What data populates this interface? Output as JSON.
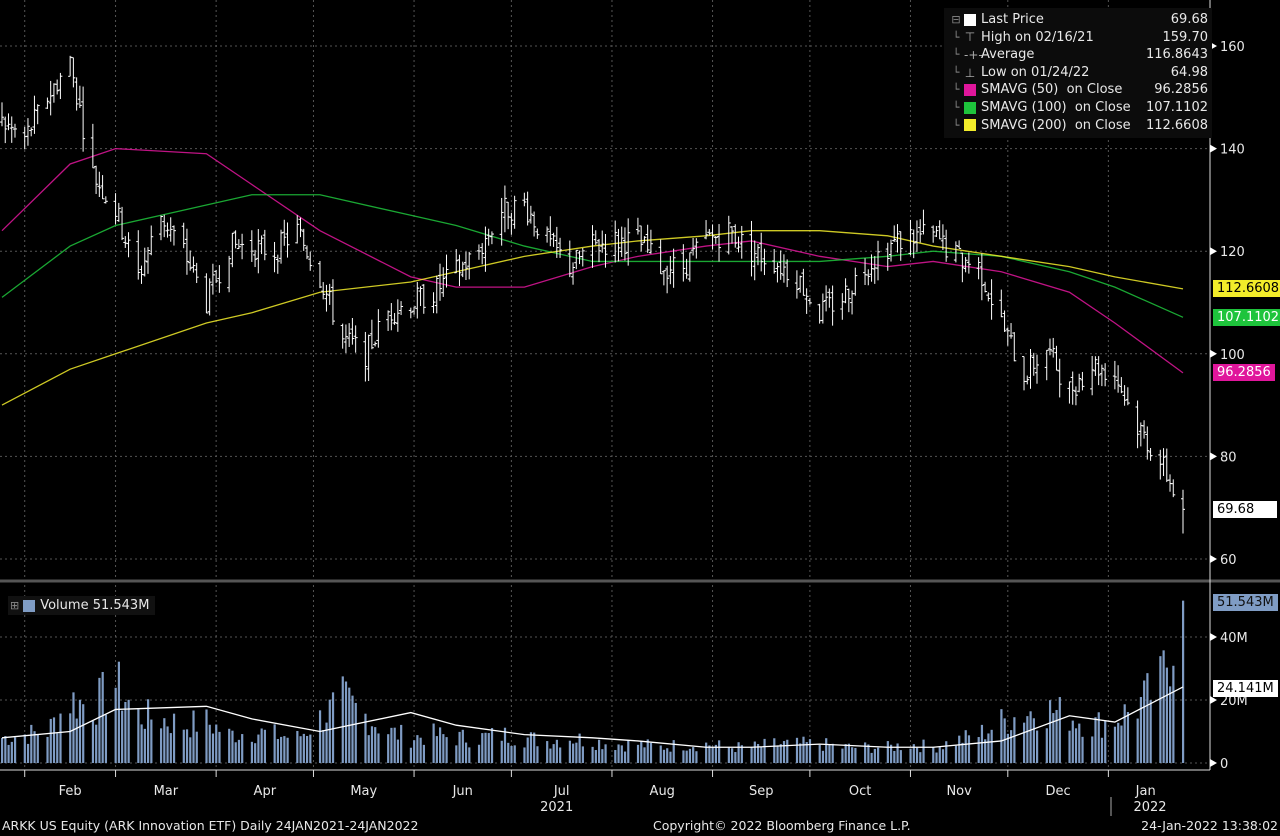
{
  "legend": {
    "rows": [
      {
        "icon": "white-square",
        "label": "Last Price",
        "value": "69.68",
        "color": "#ffffff"
      },
      {
        "icon": "high-marker",
        "label": "High on 02/16/21",
        "value": "159.70"
      },
      {
        "icon": "average-marker",
        "label": "Average",
        "value": "116.8643"
      },
      {
        "icon": "low-marker",
        "label": "Low on 01/24/22",
        "value": "64.98"
      },
      {
        "icon": "magenta-square",
        "label": "SMAVG (50)  on Close",
        "value": "96.2856",
        "color": "#e0169b"
      },
      {
        "icon": "green-square",
        "label": "SMAVG (100)  on Close",
        "value": "107.1102",
        "color": "#1ec43c"
      },
      {
        "icon": "yellow-square",
        "label": "SMAVG (200)  on Close",
        "value": "112.6608",
        "color": "#f2ec2a"
      }
    ]
  },
  "price_tags": {
    "sma200": "112.6608",
    "sma100": "107.1102",
    "sma50": "96.2856",
    "last": "69.68"
  },
  "volume_legend": {
    "label": "Volume",
    "value": "51.543M",
    "color": "#7f9cc4"
  },
  "volume_tags": {
    "last": "51.543M",
    "ma": "24.141M"
  },
  "footer": {
    "security": "ARKK US Equity (ARK Innovation ETF)  Daily 24JAN2021-24JAN2022",
    "copyright": "Copyright© 2022 Bloomberg Finance L.P.",
    "timestamp": "24-Jan-2022 13:38:02"
  },
  "chart_data": [
    {
      "type": "line",
      "panel": "price",
      "x_start": "2021-01-25",
      "x_end": "2022-01-24",
      "ylim": [
        57,
        170
      ],
      "yticks": [
        60,
        80,
        100,
        120,
        140,
        160
      ],
      "grid": true,
      "legend": "top-right",
      "xticks": [
        "Feb",
        "Mar",
        "Apr",
        "May",
        "Jun",
        "Jul",
        "Aug",
        "Sep",
        "Oct",
        "Nov",
        "Dec",
        "Jan"
      ],
      "year_labels": [
        "2021",
        "2022"
      ],
      "series": [
        {
          "name": "Last Price",
          "style": "ohlc-bars",
          "color": "#ffffff",
          "x": [
            "2021-01-25",
            "2021-02-01",
            "2021-02-08",
            "2021-02-15",
            "2021-02-22",
            "2021-03-01",
            "2021-03-08",
            "2021-03-15",
            "2021-03-22",
            "2021-03-29",
            "2021-04-05",
            "2021-04-12",
            "2021-04-19",
            "2021-04-26",
            "2021-05-03",
            "2021-05-10",
            "2021-05-17",
            "2021-05-24",
            "2021-05-31",
            "2021-06-07",
            "2021-06-14",
            "2021-06-21",
            "2021-06-28",
            "2021-07-05",
            "2021-07-12",
            "2021-07-19",
            "2021-07-26",
            "2021-08-02",
            "2021-08-09",
            "2021-08-16",
            "2021-08-23",
            "2021-08-30",
            "2021-09-06",
            "2021-09-13",
            "2021-09-20",
            "2021-09-27",
            "2021-10-04",
            "2021-10-11",
            "2021-10-18",
            "2021-10-25",
            "2021-11-01",
            "2021-11-08",
            "2021-11-15",
            "2021-11-22",
            "2021-11-29",
            "2021-12-06",
            "2021-12-13",
            "2021-12-20",
            "2021-12-27",
            "2022-01-03",
            "2022-01-10",
            "2022-01-17",
            "2022-01-24"
          ],
          "y": [
            145,
            142,
            150,
            157,
            135,
            128,
            115,
            127,
            120,
            110,
            121,
            121,
            120,
            124,
            115,
            103,
            100,
            108,
            110,
            112,
            116,
            120,
            128,
            129,
            122,
            117,
            121,
            122,
            122,
            117,
            117,
            122,
            124,
            120,
            118,
            115,
            108,
            111,
            117,
            121,
            123,
            123,
            119,
            117,
            106,
            96,
            101,
            93,
            98,
            96,
            86,
            79,
            69.68
          ]
        },
        {
          "name": "SMAVG (50)  on Close",
          "color": "#e0169b",
          "x": [
            "2021-01-25",
            "2021-02-15",
            "2021-03-01",
            "2021-03-29",
            "2021-04-12",
            "2021-05-03",
            "2021-05-31",
            "2021-06-14",
            "2021-07-05",
            "2021-07-26",
            "2021-08-09",
            "2021-08-30",
            "2021-09-13",
            "2021-10-04",
            "2021-10-25",
            "2021-11-08",
            "2021-11-29",
            "2021-12-20",
            "2022-01-03",
            "2022-01-24"
          ],
          "y": [
            124,
            137,
            140,
            139,
            133,
            124,
            115,
            113,
            113,
            117,
            119,
            121,
            122,
            119,
            117,
            118,
            116,
            112,
            106,
            96.2856
          ]
        },
        {
          "name": "SMAVG (100)  on Close",
          "color": "#1ec43c",
          "x": [
            "2021-01-25",
            "2021-02-15",
            "2021-03-01",
            "2021-03-29",
            "2021-04-12",
            "2021-05-03",
            "2021-05-31",
            "2021-06-14",
            "2021-07-05",
            "2021-07-26",
            "2021-08-09",
            "2021-08-30",
            "2021-09-13",
            "2021-10-04",
            "2021-10-25",
            "2021-11-08",
            "2021-11-29",
            "2021-12-20",
            "2022-01-03",
            "2022-01-24"
          ],
          "y": [
            111,
            121,
            125,
            129,
            131,
            131,
            127,
            125,
            121,
            118,
            118,
            118,
            118,
            118,
            119,
            120,
            119,
            116,
            113,
            107.1102
          ]
        },
        {
          "name": "SMAVG (200)  on Close",
          "color": "#f2ec2a",
          "x": [
            "2021-01-25",
            "2021-02-15",
            "2021-03-01",
            "2021-03-29",
            "2021-04-12",
            "2021-05-03",
            "2021-05-31",
            "2021-06-14",
            "2021-07-05",
            "2021-07-26",
            "2021-08-09",
            "2021-08-30",
            "2021-09-13",
            "2021-10-04",
            "2021-10-25",
            "2021-11-08",
            "2021-11-29",
            "2021-12-20",
            "2022-01-03",
            "2022-01-24"
          ],
          "y": [
            90,
            97,
            100,
            106,
            108,
            112,
            114,
            116,
            119,
            121,
            122,
            123,
            124,
            124,
            123,
            121,
            119,
            117,
            115,
            112.6608
          ]
        }
      ]
    },
    {
      "type": "bar",
      "panel": "volume",
      "ylim": [
        0,
        55
      ],
      "yticks": [
        "0",
        "20M",
        "40M"
      ],
      "series": [
        {
          "name": "Volume",
          "unit": "M",
          "color": "#7f9cc4",
          "x": [
            "2021-01-25",
            "2021-02-01",
            "2021-02-08",
            "2021-02-15",
            "2021-02-22",
            "2021-03-01",
            "2021-03-08",
            "2021-03-15",
            "2021-03-22",
            "2021-03-29",
            "2021-04-05",
            "2021-04-12",
            "2021-04-19",
            "2021-04-26",
            "2021-05-03",
            "2021-05-10",
            "2021-05-17",
            "2021-05-24",
            "2021-05-31",
            "2021-06-07",
            "2021-06-14",
            "2021-06-21",
            "2021-06-28",
            "2021-07-05",
            "2021-07-12",
            "2021-07-19",
            "2021-07-26",
            "2021-08-02",
            "2021-08-09",
            "2021-08-16",
            "2021-08-23",
            "2021-08-30",
            "2021-09-06",
            "2021-09-13",
            "2021-09-20",
            "2021-09-27",
            "2021-10-04",
            "2021-10-11",
            "2021-10-18",
            "2021-10-25",
            "2021-11-01",
            "2021-11-08",
            "2021-11-15",
            "2021-11-22",
            "2021-11-29",
            "2021-12-06",
            "2021-12-13",
            "2021-12-20",
            "2021-12-27",
            "2022-01-03",
            "2022-01-10",
            "2022-01-17",
            "2022-01-24"
          ],
          "y": [
            8,
            9,
            10,
            20,
            18,
            25,
            15,
            14,
            12,
            13,
            9,
            10,
            9,
            8,
            14,
            20,
            15,
            10,
            8,
            9,
            8,
            8,
            9,
            8,
            7,
            8,
            7,
            6,
            6,
            5,
            6,
            6,
            5,
            5,
            6,
            6,
            6,
            5,
            5,
            5,
            6,
            5,
            7,
            9,
            13,
            16,
            17,
            15,
            12,
            14,
            18,
            25,
            51.543
          ]
        },
        {
          "name": "Volume MA",
          "color": "#ffffff",
          "x": [
            "2021-01-25",
            "2021-02-15",
            "2021-03-01",
            "2021-03-29",
            "2021-04-12",
            "2021-05-03",
            "2021-05-31",
            "2021-06-14",
            "2021-07-05",
            "2021-07-26",
            "2021-08-09",
            "2021-08-30",
            "2021-09-13",
            "2021-10-04",
            "2021-10-25",
            "2021-11-08",
            "2021-11-29",
            "2021-12-20",
            "2022-01-03",
            "2022-01-24"
          ],
          "y": [
            8,
            10,
            17,
            18,
            14,
            10,
            16,
            12,
            9,
            8,
            7,
            5,
            5,
            6,
            5,
            5,
            7,
            15,
            13,
            24.141
          ]
        }
      ]
    }
  ]
}
